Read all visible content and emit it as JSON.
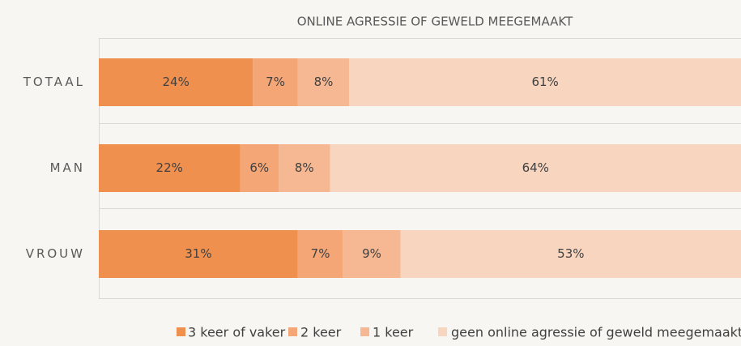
{
  "chart_data": {
    "type": "stacked_barh",
    "title": "ONLINE AGRESSIE OF GEWELD MEEGEMAAKT",
    "categories": [
      "TOTAAL",
      "MAN",
      "VROUW"
    ],
    "series": [
      {
        "name": "3 keer of vaker",
        "color": "#f0904f",
        "values": [
          24,
          22,
          31
        ],
        "value_labels": [
          "24%",
          "22%",
          "31%"
        ]
      },
      {
        "name": "2 keer",
        "color": "#f4a677",
        "values": [
          7,
          6,
          7
        ],
        "value_labels": [
          "7%",
          "6%",
          "7%"
        ]
      },
      {
        "name": "1 keer",
        "color": "#f6b893",
        "values": [
          8,
          8,
          9
        ],
        "value_labels": [
          "8%",
          "8%",
          "9%"
        ]
      },
      {
        "name": "geen online agressie of geweld meegemaakt",
        "color": "#f8d5bf",
        "values": [
          61,
          64,
          53
        ],
        "value_labels": [
          "61%",
          "64%",
          "53%"
        ]
      }
    ],
    "xlim": [
      0,
      100
    ],
    "legend": "bottom"
  }
}
